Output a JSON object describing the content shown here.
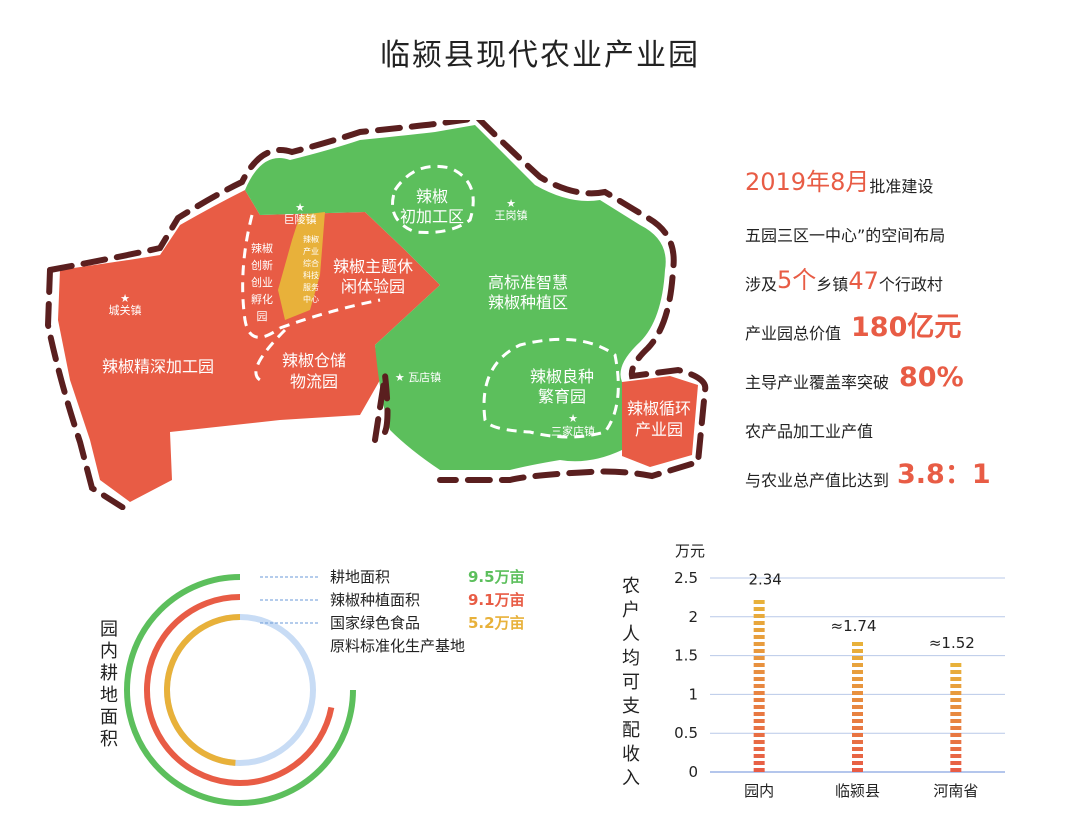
{
  "title": "临颍县现代农业产业园",
  "map": {
    "zones": {
      "shenjiagong": "辣椒精深加工园",
      "chuangxin": [
        "辣椒",
        "创新",
        "创业",
        "孵化",
        "园"
      ],
      "fuwu": [
        "辣椒",
        "产业",
        "综合",
        "科技",
        "服务",
        "中心"
      ],
      "xiuxian": [
        "辣椒主题休",
        "闲体验园"
      ],
      "chujiagong": [
        "辣椒",
        "初加工区"
      ],
      "zhongzhi": [
        "高标准智慧",
        "辣椒种植区"
      ],
      "cangchu": [
        "辣椒仓储",
        "物流园"
      ],
      "liangzhong": [
        "辣椒良种",
        "繁育园"
      ],
      "xunhuan": [
        "辣椒循环",
        "产业园"
      ]
    },
    "towns": {
      "julingzhen": "巨陵镇",
      "wanggangzhen": "王岗镇",
      "chengguanzhen": "城关镇",
      "wadianzhen": "瓦店镇",
      "sanjiadianzhen": "三家店镇"
    },
    "colors": {
      "red": "#e85c45",
      "green": "#5cbf5c",
      "yellow": "#e8b13a",
      "border": "#5a1f1f"
    }
  },
  "stats": {
    "s1": {
      "hl": "2019年8月",
      "txt": "批准建设"
    },
    "s2": {
      "txt": "五园三区一中心”的空间布局"
    },
    "s3": {
      "a": "涉及",
      "hl1": "5个",
      "b": "乡镇",
      "hl2": "47",
      "c": "个行政村"
    },
    "s4": {
      "txt": "产业园总价值",
      "hl": "180亿元"
    },
    "s5": {
      "txt": "主导产业覆盖率突破",
      "hl": "80%"
    },
    "s6": {
      "txt": "农产品加工业产值"
    },
    "s7": {
      "txt": "与农业总产值比达到",
      "hl": "3.8：1"
    }
  },
  "rings": {
    "vertical_title": [
      "园",
      "内",
      "耕",
      "地",
      "面",
      "积"
    ],
    "items": [
      {
        "label": "耕地面积",
        "value": "9.5万亩",
        "color": "#5cbf5c",
        "fraction": 0.75
      },
      {
        "label": "辣椒种植面积",
        "value": "9.1万亩",
        "color": "#e85c45",
        "fraction": 0.72
      },
      {
        "label": "国家绿色食品",
        "label2": "原料标准化生产基地",
        "value": "5.2万亩",
        "color": "#e8b13a",
        "fraction": 0.49
      }
    ]
  },
  "chart_data": {
    "type": "bar",
    "unit": "万元",
    "ylabel": [
      "农",
      "户",
      "人",
      "均",
      "可",
      "支",
      "配",
      "收",
      "入"
    ],
    "categories": [
      "园内",
      "临颍县",
      "河南省"
    ],
    "values": [
      2.34,
      1.74,
      1.52
    ],
    "value_labels": [
      "2.34",
      "≈1.74",
      "≈1.52"
    ],
    "ylim": [
      0,
      2.5
    ],
    "yticks": [
      "0",
      "0.5",
      "1",
      "1.5",
      "2",
      "2.5"
    ],
    "grid": true
  }
}
